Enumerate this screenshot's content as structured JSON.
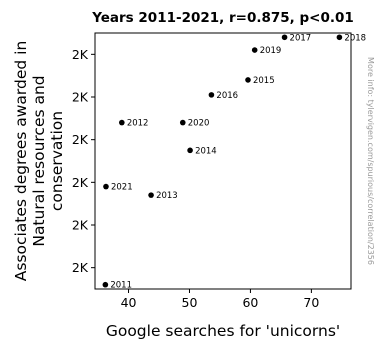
{
  "chart_data": {
    "type": "scatter",
    "title": "Years 2011-2021, r=0.875, p<0.01",
    "xlabel": "Google searches for 'unicorns'",
    "ylabel": [
      "Associates degrees awarded in",
      "Natural resources and",
      "conservation"
    ],
    "xlim": [
      34.5,
      76.5
    ],
    "ylim": [
      1940,
      2060
    ],
    "xticks": [
      40,
      50,
      60,
      70
    ],
    "yticks": [
      {
        "value": 1950,
        "label": "2K"
      },
      {
        "value": 1970,
        "label": "2K"
      },
      {
        "value": 1990,
        "label": "2K"
      },
      {
        "value": 2010,
        "label": "2K"
      },
      {
        "value": 2030,
        "label": "2K"
      },
      {
        "value": 2050,
        "label": "2K"
      }
    ],
    "points": [
      {
        "label": "2011",
        "x": 36.2,
        "y": 1942
      },
      {
        "label": "2012",
        "x": 38.9,
        "y": 2018
      },
      {
        "label": "2013",
        "x": 43.7,
        "y": 1984
      },
      {
        "label": "2014",
        "x": 50.1,
        "y": 2005
      },
      {
        "label": "2015",
        "x": 59.6,
        "y": 2038
      },
      {
        "label": "2016",
        "x": 53.6,
        "y": 2031
      },
      {
        "label": "2017",
        "x": 65.6,
        "y": 2058
      },
      {
        "label": "2018",
        "x": 74.6,
        "y": 2058
      },
      {
        "label": "2019",
        "x": 60.7,
        "y": 2052
      },
      {
        "label": "2020",
        "x": 48.9,
        "y": 2018
      },
      {
        "label": "2021",
        "x": 36.3,
        "y": 1988
      }
    ],
    "grid": false,
    "watermark": "More info: tylervigen.com/spurious/correlation/2356"
  }
}
